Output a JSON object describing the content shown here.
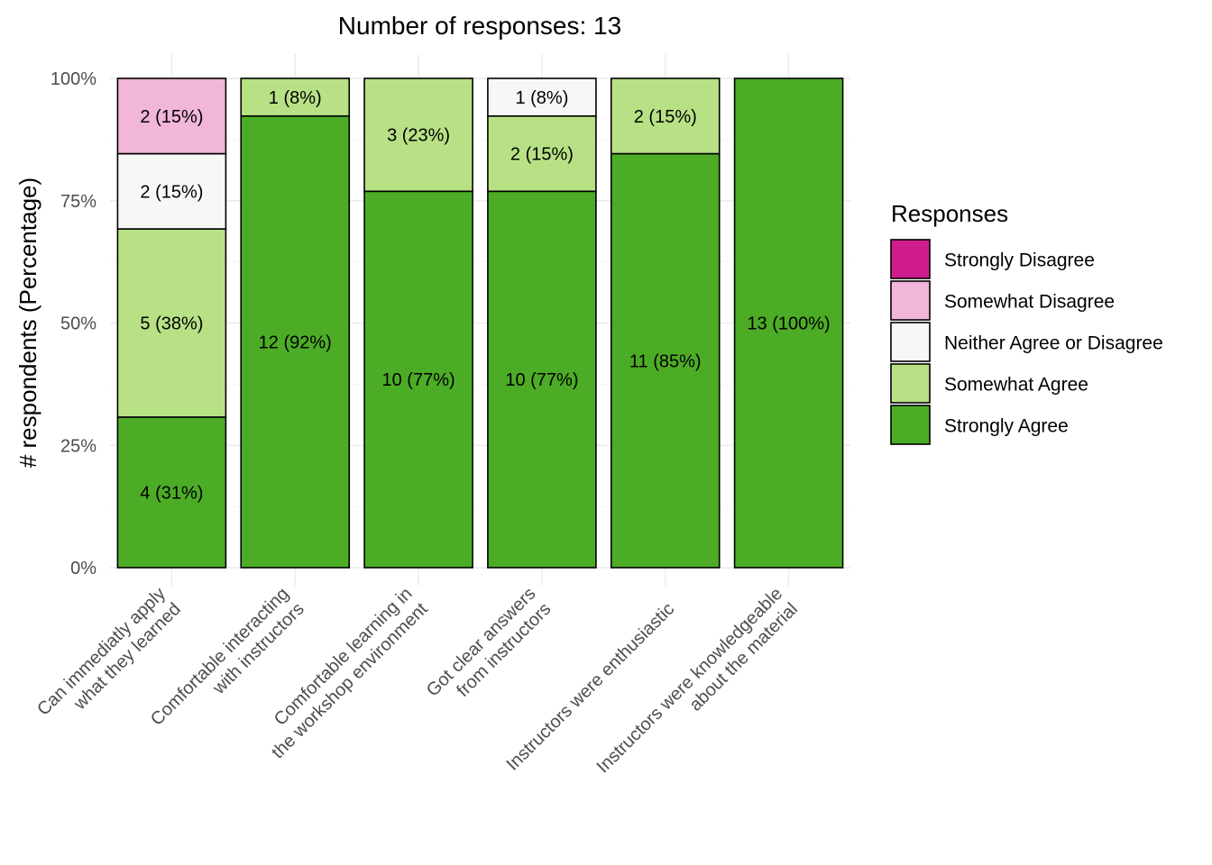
{
  "chart_data": {
    "type": "bar",
    "stacked": true,
    "title": "Number of responses: 13",
    "xlabel": "",
    "ylabel": "# respondents (Percentage)",
    "ylim": [
      0,
      100
    ],
    "yticks": [
      "0%",
      "25%",
      "50%",
      "75%",
      "100%"
    ],
    "categories": [
      [
        "Can immediatly apply",
        "what they learned"
      ],
      [
        "Comfortable interacting",
        "with instructors"
      ],
      [
        "Comfortable learning in",
        "the workshop environment"
      ],
      [
        "Got clear answers",
        "from instructors"
      ],
      [
        "Instructors were enthusiastic"
      ],
      [
        "Instructors were knowledgeable",
        "about the material"
      ]
    ],
    "legend": {
      "title": "Responses",
      "position": "right",
      "items": [
        "Strongly Disagree",
        "Somewhat Disagree",
        "Neither Agree or Disagree",
        "Somewhat Agree",
        "Strongly Agree"
      ]
    },
    "colors": {
      "Strongly Disagree": "#d01c8b",
      "Somewhat Disagree": "#f1b6da",
      "Neither Agree or Disagree": "#f7f7f7",
      "Somewhat Agree": "#b8e186",
      "Strongly Agree": "#4dac26"
    },
    "series": [
      {
        "name": "Strongly Agree",
        "counts": [
          4,
          12,
          10,
          10,
          11,
          13
        ],
        "labels": [
          "4 (31%)",
          "12 (92%)",
          "10 (77%)",
          "10 (77%)",
          "11 (85%)",
          "13 (100%)"
        ]
      },
      {
        "name": "Somewhat Agree",
        "counts": [
          5,
          1,
          3,
          2,
          2,
          0
        ],
        "labels": [
          "5 (38%)",
          "1 (8%)",
          "3 (23%)",
          "2 (15%)",
          "2 (15%)",
          ""
        ]
      },
      {
        "name": "Neither Agree or Disagree",
        "counts": [
          2,
          0,
          0,
          1,
          0,
          0
        ],
        "labels": [
          "2 (15%)",
          "",
          "",
          "1 (8%)",
          "",
          ""
        ]
      },
      {
        "name": "Somewhat Disagree",
        "counts": [
          2,
          0,
          0,
          0,
          0,
          0
        ],
        "labels": [
          "2 (15%)",
          "",
          "",
          "",
          "",
          ""
        ]
      },
      {
        "name": "Strongly Disagree",
        "counts": [
          0,
          0,
          0,
          0,
          0,
          0
        ],
        "labels": [
          "",
          "",
          "",
          "",
          "",
          ""
        ]
      }
    ],
    "total_responses": 13,
    "grid": true
  }
}
